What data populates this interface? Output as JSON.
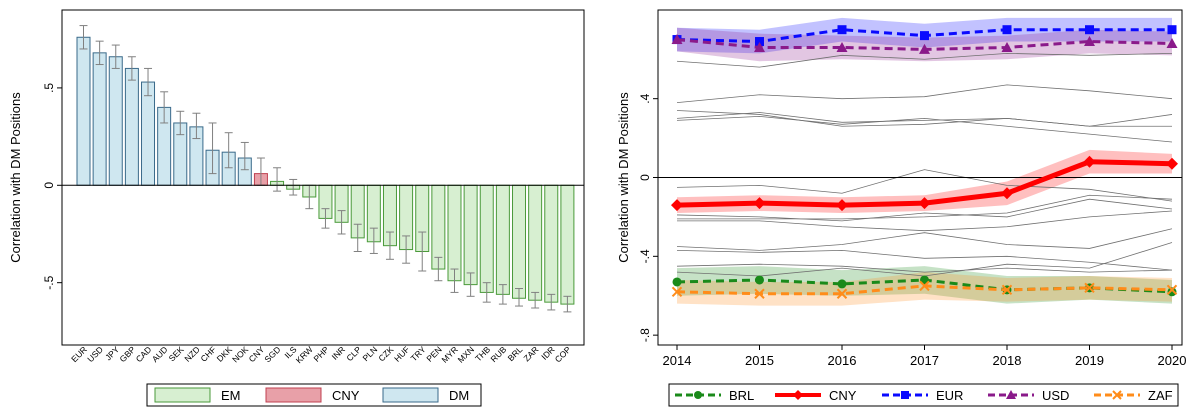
{
  "chart_data": [
    {
      "type": "bar",
      "ylabel": "Correlation with DM Positions",
      "ylim": [
        -0.82,
        0.9
      ],
      "yticks": [
        -0.5,
        0,
        0.5
      ],
      "ytick_labels": [
        "-.5",
        "0",
        ".5"
      ],
      "categories": [
        "EUR",
        "USD",
        "JPY",
        "GBP",
        "CAD",
        "AUD",
        "SEK",
        "NZD",
        "CHF",
        "DKK",
        "NOK",
        "CNY",
        "SGD",
        "ILS",
        "KRW",
        "PHP",
        "INR",
        "CLP",
        "PLN",
        "CZK",
        "HUF",
        "TRY",
        "PEN",
        "MYR",
        "MXN",
        "THB",
        "RUB",
        "BRL",
        "ZAR",
        "IDR",
        "COP"
      ],
      "values": [
        0.76,
        0.68,
        0.66,
        0.6,
        0.53,
        0.4,
        0.32,
        0.3,
        0.18,
        0.17,
        0.14,
        0.06,
        0.02,
        -0.02,
        -0.06,
        -0.17,
        -0.19,
        -0.27,
        -0.29,
        -0.31,
        -0.33,
        -0.34,
        -0.43,
        -0.49,
        -0.51,
        -0.55,
        -0.56,
        -0.58,
        -0.59,
        -0.6,
        -0.61
      ],
      "ci_low": [
        0.7,
        0.62,
        0.6,
        0.54,
        0.46,
        0.32,
        0.26,
        0.24,
        0.06,
        0.09,
        0.08,
        0.0,
        -0.03,
        -0.05,
        -0.12,
        -0.22,
        -0.25,
        -0.34,
        -0.35,
        -0.38,
        -0.4,
        -0.44,
        -0.49,
        -0.55,
        -0.57,
        -0.6,
        -0.61,
        -0.62,
        -0.63,
        -0.64,
        -0.65
      ],
      "ci_high": [
        0.82,
        0.74,
        0.72,
        0.66,
        0.6,
        0.48,
        0.38,
        0.37,
        0.32,
        0.27,
        0.22,
        0.14,
        0.09,
        0.03,
        0.0,
        -0.12,
        -0.13,
        -0.2,
        -0.22,
        -0.24,
        -0.26,
        -0.24,
        -0.37,
        -0.43,
        -0.45,
        -0.5,
        -0.51,
        -0.53,
        -0.55,
        -0.56,
        -0.57
      ],
      "groups": [
        "DM",
        "DM",
        "DM",
        "DM",
        "DM",
        "DM",
        "DM",
        "DM",
        "DM",
        "DM",
        "DM",
        "CNY",
        "EM",
        "EM",
        "EM",
        "EM",
        "EM",
        "EM",
        "EM",
        "EM",
        "EM",
        "EM",
        "EM",
        "EM",
        "EM",
        "EM",
        "EM",
        "EM",
        "EM",
        "EM",
        "EM"
      ],
      "legend": [
        {
          "label": "EM",
          "color": "#d7efd1",
          "edge": "#4a9a3a"
        },
        {
          "label": "CNY",
          "color": "#e8a0a8",
          "edge": "#c04050"
        },
        {
          "label": "DM",
          "color": "#cfe7f0",
          "edge": "#3a6a8a"
        }
      ],
      "legend_position": "bottom"
    },
    {
      "type": "line",
      "ylabel": "Correlation with DM Positions",
      "ylim": [
        -0.85,
        0.85
      ],
      "yticks": [
        -0.8,
        -0.4,
        0,
        0.4
      ],
      "ytick_labels": [
        "-.8",
        "-.4",
        "0",
        ".4"
      ],
      "x": [
        2014,
        2015,
        2016,
        2017,
        2018,
        2019,
        2020
      ],
      "xtick_labels": [
        "2014",
        "2015",
        "2016",
        "2017",
        "2018",
        "2019",
        "2020"
      ],
      "series": [
        {
          "name": "BRL",
          "color": "#1a8a1a",
          "marker": "circle",
          "dash": "dashed",
          "values": [
            -0.53,
            -0.52,
            -0.54,
            -0.52,
            -0.57,
            -0.56,
            -0.58
          ],
          "band_low": [
            -0.6,
            -0.59,
            -0.6,
            -0.59,
            -0.64,
            -0.62,
            -0.64
          ],
          "band_high": [
            -0.46,
            -0.45,
            -0.47,
            -0.45,
            -0.5,
            -0.5,
            -0.52
          ]
        },
        {
          "name": "CNY",
          "color": "#ff0000",
          "marker": "diamond",
          "dash": "solid",
          "values": [
            -0.14,
            -0.13,
            -0.14,
            -0.13,
            -0.08,
            0.08,
            0.07
          ],
          "band_low": [
            -0.18,
            -0.17,
            -0.18,
            -0.17,
            -0.14,
            0.02,
            0.02
          ],
          "band_high": [
            -0.1,
            -0.09,
            -0.1,
            -0.09,
            -0.02,
            0.14,
            0.12
          ]
        },
        {
          "name": "EUR",
          "color": "#0a0aff",
          "marker": "square",
          "dash": "dashed",
          "values": [
            0.7,
            0.69,
            0.75,
            0.72,
            0.75,
            0.75,
            0.75
          ],
          "band_low": [
            0.64,
            0.63,
            0.69,
            0.66,
            0.69,
            0.69,
            0.69
          ],
          "band_high": [
            0.76,
            0.75,
            0.81,
            0.78,
            0.81,
            0.81,
            0.81
          ]
        },
        {
          "name": "USD",
          "color": "#8a1a8a",
          "marker": "triangle",
          "dash": "dashed",
          "values": [
            0.7,
            0.66,
            0.66,
            0.65,
            0.66,
            0.69,
            0.68
          ],
          "band_low": [
            0.64,
            0.59,
            0.6,
            0.59,
            0.6,
            0.63,
            0.62
          ],
          "band_high": [
            0.76,
            0.73,
            0.72,
            0.71,
            0.72,
            0.75,
            0.74
          ]
        },
        {
          "name": "ZAF",
          "color": "#ff8c1a",
          "marker": "x",
          "dash": "dashed",
          "values": [
            -0.58,
            -0.59,
            -0.59,
            -0.55,
            -0.57,
            -0.56,
            -0.57
          ],
          "band_low": [
            -0.64,
            -0.65,
            -0.65,
            -0.62,
            -0.63,
            -0.62,
            -0.63
          ],
          "band_high": [
            -0.52,
            -0.53,
            -0.53,
            -0.48,
            -0.51,
            -0.5,
            -0.51
          ]
        }
      ],
      "background_series": [
        [
          0.59,
          0.56,
          0.62,
          0.6,
          0.63,
          0.62,
          0.63
        ],
        [
          0.38,
          0.42,
          0.4,
          0.41,
          0.47,
          0.44,
          0.4
        ],
        [
          0.34,
          0.32,
          0.26,
          0.27,
          0.3,
          0.26,
          0.26
        ],
        [
          0.3,
          0.33,
          0.28,
          0.29,
          0.3,
          0.26,
          0.32
        ],
        [
          0.29,
          0.31,
          0.27,
          0.3,
          0.26,
          0.22,
          0.18
        ],
        [
          -0.05,
          -0.04,
          -0.08,
          0.04,
          -0.04,
          -0.06,
          -0.12
        ],
        [
          -0.19,
          -0.2,
          -0.22,
          -0.18,
          -0.2,
          -0.11,
          -0.16
        ],
        [
          -0.22,
          -0.22,
          -0.25,
          -0.27,
          -0.25,
          -0.2,
          -0.17
        ],
        [
          -0.21,
          -0.21,
          -0.21,
          -0.2,
          -0.18,
          -0.09,
          -0.11
        ],
        [
          -0.37,
          -0.38,
          -0.37,
          -0.41,
          -0.4,
          -0.43,
          -0.47
        ],
        [
          -0.35,
          -0.37,
          -0.34,
          -0.28,
          -0.34,
          -0.36,
          -0.26
        ],
        [
          -0.48,
          -0.5,
          -0.46,
          -0.5,
          -0.44,
          -0.46,
          -0.33
        ],
        [
          -0.45,
          -0.44,
          -0.45,
          -0.48,
          -0.46,
          -0.48,
          -0.47
        ]
      ],
      "grid": false,
      "legend_position": "bottom"
    }
  ]
}
